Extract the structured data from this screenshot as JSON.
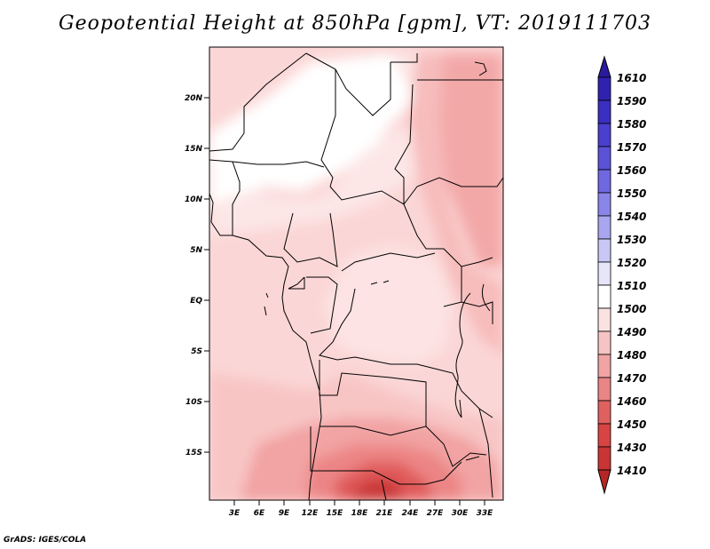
{
  "title": "Geopotential Height at 850hPa [gpm], VT: 2019111703",
  "credit": "GrADS: IGES/COLA",
  "map": {
    "lat_labels": [
      "20N",
      "15N",
      "10N",
      "5N",
      "EQ",
      "5S",
      "10S",
      "15S"
    ],
    "lon_labels": [
      "3E",
      "6E",
      "9E",
      "12E",
      "15E",
      "18E",
      "21E",
      "24E",
      "27E",
      "30E",
      "33E"
    ],
    "lat_range": [
      -20,
      24.5
    ],
    "lon_range": [
      0,
      35
    ]
  },
  "colorbar": {
    "levels": [
      "1610",
      "1590",
      "1580",
      "1570",
      "1560",
      "1550",
      "1540",
      "1530",
      "1520",
      "1510",
      "1500",
      "1490",
      "1480",
      "1470",
      "1460",
      "1450",
      "1430",
      "1410"
    ],
    "colors": [
      "#2a1a9e",
      "#2f22b0",
      "#3a2fc0",
      "#4a3fce",
      "#5b52d8",
      "#6f68e0",
      "#8a85e8",
      "#a9a6ef",
      "#c9c7f5",
      "#e6e5fa",
      "#ffffff",
      "#fbe2e2",
      "#f6c4c4",
      "#f0a4a4",
      "#ea8585",
      "#e06060",
      "#d84444",
      "#c93434",
      "#b52727"
    ]
  }
}
